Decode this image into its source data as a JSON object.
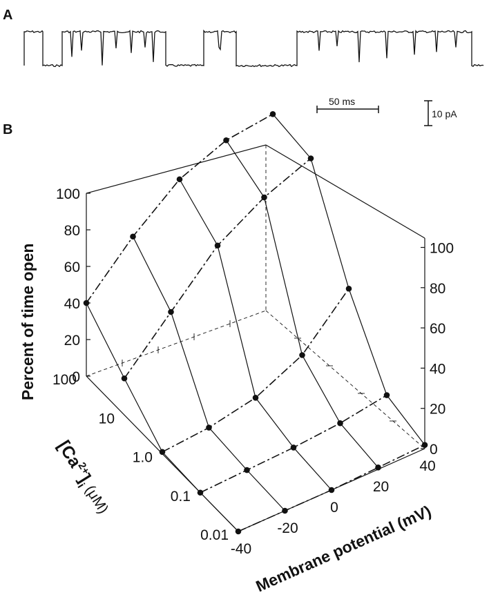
{
  "panel_a": {
    "letter": "A",
    "scalebar_time": "50 ms",
    "scalebar_current": "10 pA"
  },
  "panel_b": {
    "letter": "B",
    "z_axis_label": "Percent of time open",
    "z_ticks_left": [
      "100",
      "80",
      "60",
      "40",
      "20",
      "0"
    ],
    "z_ticks_right": [
      "100",
      "80",
      "60",
      "40",
      "20",
      "0"
    ],
    "ca_axis_label_main": "[Ca",
    "ca_axis_label_sup": "2+",
    "ca_axis_label_end": "]",
    "ca_axis_label_sub": "i",
    "ca_axis_label_unit": "(μM)",
    "ca_ticks": [
      "100",
      "10",
      "1.0",
      "0.1",
      "0.01"
    ],
    "v_axis_label": "Membrane potential (mV)",
    "v_ticks": [
      "-40",
      "-20",
      "0",
      "20",
      "40"
    ]
  },
  "chart_data": {
    "type": "surface",
    "x_label": "Membrane potential (mV)",
    "y_label": "[Ca2+]i (μM)",
    "z_label": "Percent of time open",
    "x": [
      -40,
      -20,
      0,
      20,
      40
    ],
    "y": [
      0.01,
      0.1,
      1.0,
      10,
      100
    ],
    "zlim": [
      0,
      100
    ],
    "series": [
      {
        "name": "0.01",
        "values": [
          0,
          0,
          0,
          1,
          2
        ]
      },
      {
        "name": "0.1",
        "values": [
          0,
          1,
          2,
          4,
          8
        ]
      },
      {
        "name": "1.0",
        "values": [
          1,
          3,
          8,
          20,
          45
        ]
      },
      {
        "name": "10",
        "values": [
          20,
          45,
          70,
          85,
          95
        ]
      },
      {
        "name": "100",
        "values": [
          40,
          65,
          85,
          95,
          98
        ]
      }
    ]
  }
}
